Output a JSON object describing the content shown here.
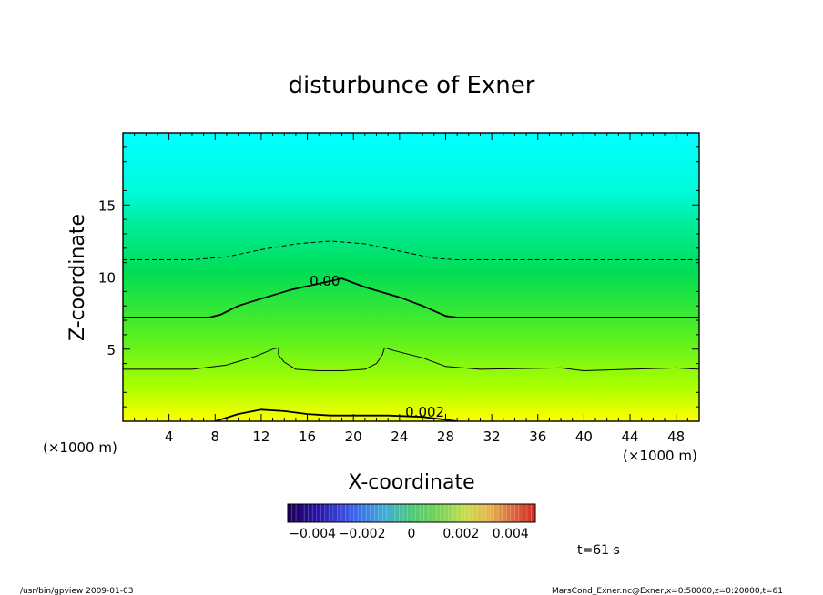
{
  "chart_data": {
    "type": "contour",
    "title": "disturbunce of Exner",
    "xlabel": "X-coordinate",
    "ylabel": "Z-coordinate",
    "x_unit_left": "(×1000 m)",
    "x_unit_right": "(×1000 m)",
    "xlim": [
      0,
      50
    ],
    "ylim": [
      0,
      20
    ],
    "xticks": [
      4,
      8,
      12,
      16,
      20,
      24,
      28,
      32,
      36,
      40,
      44,
      48
    ],
    "yticks": [
      5,
      10,
      15
    ],
    "contour_labels": [
      {
        "text": "0.00",
        "x": 16.2,
        "y": 9.4
      },
      {
        "text": "0.002",
        "x": 24.5,
        "y": 0.3
      }
    ],
    "contours": [
      {
        "level": "negative",
        "style": "dashed",
        "points": [
          [
            0,
            11.2
          ],
          [
            6,
            11.2
          ],
          [
            9,
            11.4
          ],
          [
            12,
            11.9
          ],
          [
            15,
            12.3
          ],
          [
            18,
            12.5
          ],
          [
            21,
            12.3
          ],
          [
            24,
            11.8
          ],
          [
            27,
            11.3
          ],
          [
            29,
            11.2
          ],
          [
            50,
            11.2
          ]
        ]
      },
      {
        "level": "zero",
        "style": "thick",
        "points": [
          [
            0,
            7.2
          ],
          [
            7.5,
            7.2
          ],
          [
            8.5,
            7.4
          ],
          [
            10,
            8
          ],
          [
            12,
            8.5
          ],
          [
            14.5,
            9.1
          ],
          [
            19,
            9.9
          ],
          [
            21,
            9.3
          ],
          [
            24,
            8.6
          ],
          [
            26,
            8
          ],
          [
            28,
            7.3
          ],
          [
            29,
            7.2
          ],
          [
            50,
            7.2
          ]
        ]
      },
      {
        "level": "positive-thin",
        "style": "thin",
        "points": [
          [
            0,
            3.6
          ],
          [
            6,
            3.6
          ],
          [
            9,
            3.9
          ],
          [
            11.5,
            4.5
          ],
          [
            13,
            5
          ],
          [
            13.5,
            5.1
          ],
          [
            13.5,
            4.6
          ],
          [
            14,
            4.1
          ],
          [
            15,
            3.6
          ],
          [
            17,
            3.5
          ],
          [
            18,
            3.5
          ],
          [
            19,
            3.5
          ],
          [
            21,
            3.6
          ],
          [
            22,
            4
          ],
          [
            22.5,
            4.6
          ],
          [
            22.7,
            5.1
          ],
          [
            23.5,
            4.9
          ],
          [
            26,
            4.4
          ],
          [
            28,
            3.8
          ],
          [
            31,
            3.6
          ],
          [
            38,
            3.7
          ],
          [
            40,
            3.5
          ],
          [
            44,
            3.6
          ],
          [
            48,
            3.7
          ],
          [
            50,
            3.6
          ]
        ]
      },
      {
        "level": "0.002",
        "style": "thick",
        "points": [
          [
            8,
            0
          ],
          [
            10,
            0.5
          ],
          [
            12,
            0.8
          ],
          [
            14,
            0.7
          ],
          [
            16,
            0.5
          ],
          [
            18,
            0.4
          ],
          [
            20,
            0.4
          ],
          [
            23,
            0.4
          ],
          [
            26,
            0.3
          ],
          [
            28,
            0.1
          ],
          [
            29,
            0
          ]
        ]
      }
    ],
    "colorbar": {
      "min": -0.005,
      "max": 0.005,
      "tick_labels": [
        "−0.004",
        "−0.002",
        "0",
        "0.002",
        "0.004"
      ],
      "tick_values": [
        -0.004,
        -0.002,
        0,
        0.002,
        0.004
      ]
    },
    "grid": false
  },
  "time_label": "t=61 s",
  "footer_left": "/usr/bin/gpview   2009-01-03",
  "footer_right": "MarsCond_Exner.nc@Exner,x=0:50000,z=0:20000,t=61"
}
